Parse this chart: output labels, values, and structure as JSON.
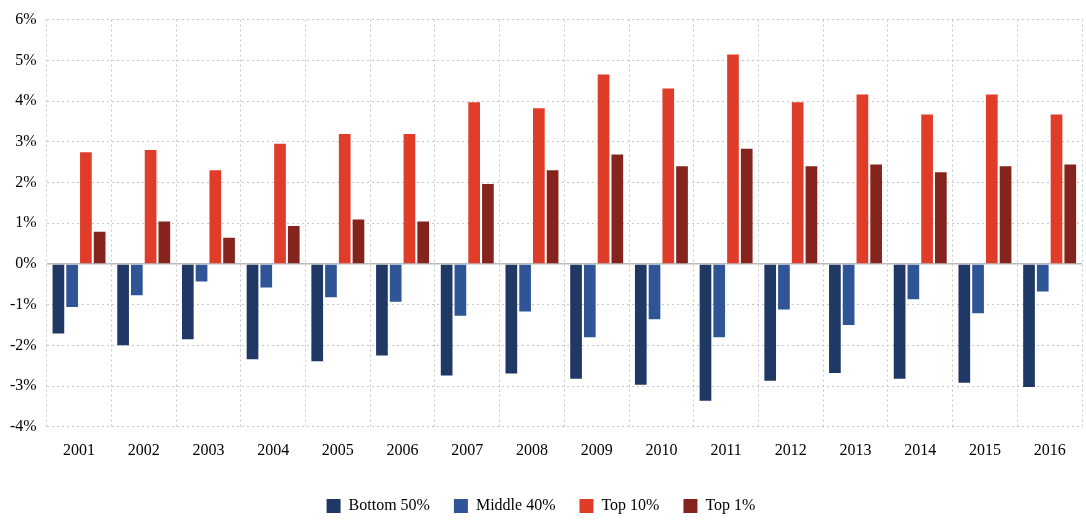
{
  "chart_data": {
    "type": "bar",
    "categories": [
      "2001",
      "2002",
      "2003",
      "2004",
      "2005",
      "2006",
      "2007",
      "2008",
      "2009",
      "2010",
      "2011",
      "2012",
      "2013",
      "2014",
      "2015",
      "2016"
    ],
    "series": [
      {
        "name": "Bottom 50%",
        "color": "#203864",
        "values": [
          -1.71,
          -2.0,
          -1.85,
          -2.34,
          -2.39,
          -2.25,
          -2.74,
          -2.69,
          -2.82,
          -2.97,
          -3.36,
          -2.87,
          -2.68,
          -2.82,
          -2.92,
          -3.02
        ]
      },
      {
        "name": "Middle 40%",
        "color": "#2f5597",
        "values": [
          -1.06,
          -0.77,
          -0.43,
          -0.58,
          -0.82,
          -0.93,
          -1.27,
          -1.17,
          -1.8,
          -1.36,
          -1.8,
          -1.12,
          -1.5,
          -0.87,
          -1.21,
          -0.68
        ]
      },
      {
        "name": "Top 10%",
        "color": "#e03c2a",
        "values": [
          2.74,
          2.8,
          2.3,
          2.95,
          3.19,
          3.19,
          3.97,
          3.82,
          4.65,
          4.31,
          5.14,
          3.97,
          4.16,
          3.67,
          4.16,
          3.67
        ]
      },
      {
        "name": "Top 1%",
        "color": "#84241d",
        "values": [
          0.79,
          1.04,
          0.64,
          0.93,
          1.09,
          1.04,
          1.96,
          2.3,
          2.69,
          2.4,
          2.83,
          2.4,
          2.44,
          2.25,
          2.4,
          2.44
        ]
      }
    ],
    "ylim": [
      -4,
      6
    ],
    "yticks": [
      {
        "value": -4,
        "label": "-4%"
      },
      {
        "value": -3,
        "label": "-3%"
      },
      {
        "value": -2,
        "label": "-2%"
      },
      {
        "value": -1,
        "label": "-1%"
      },
      {
        "value": 0,
        "label": "0%"
      },
      {
        "value": 1,
        "label": "1%"
      },
      {
        "value": 2,
        "label": "2%"
      },
      {
        "value": 3,
        "label": "3%"
      },
      {
        "value": 4,
        "label": "4%"
      },
      {
        "value": 5,
        "label": "5%"
      },
      {
        "value": 6,
        "label": "6%"
      }
    ],
    "grid": true,
    "legend": "bottom"
  }
}
